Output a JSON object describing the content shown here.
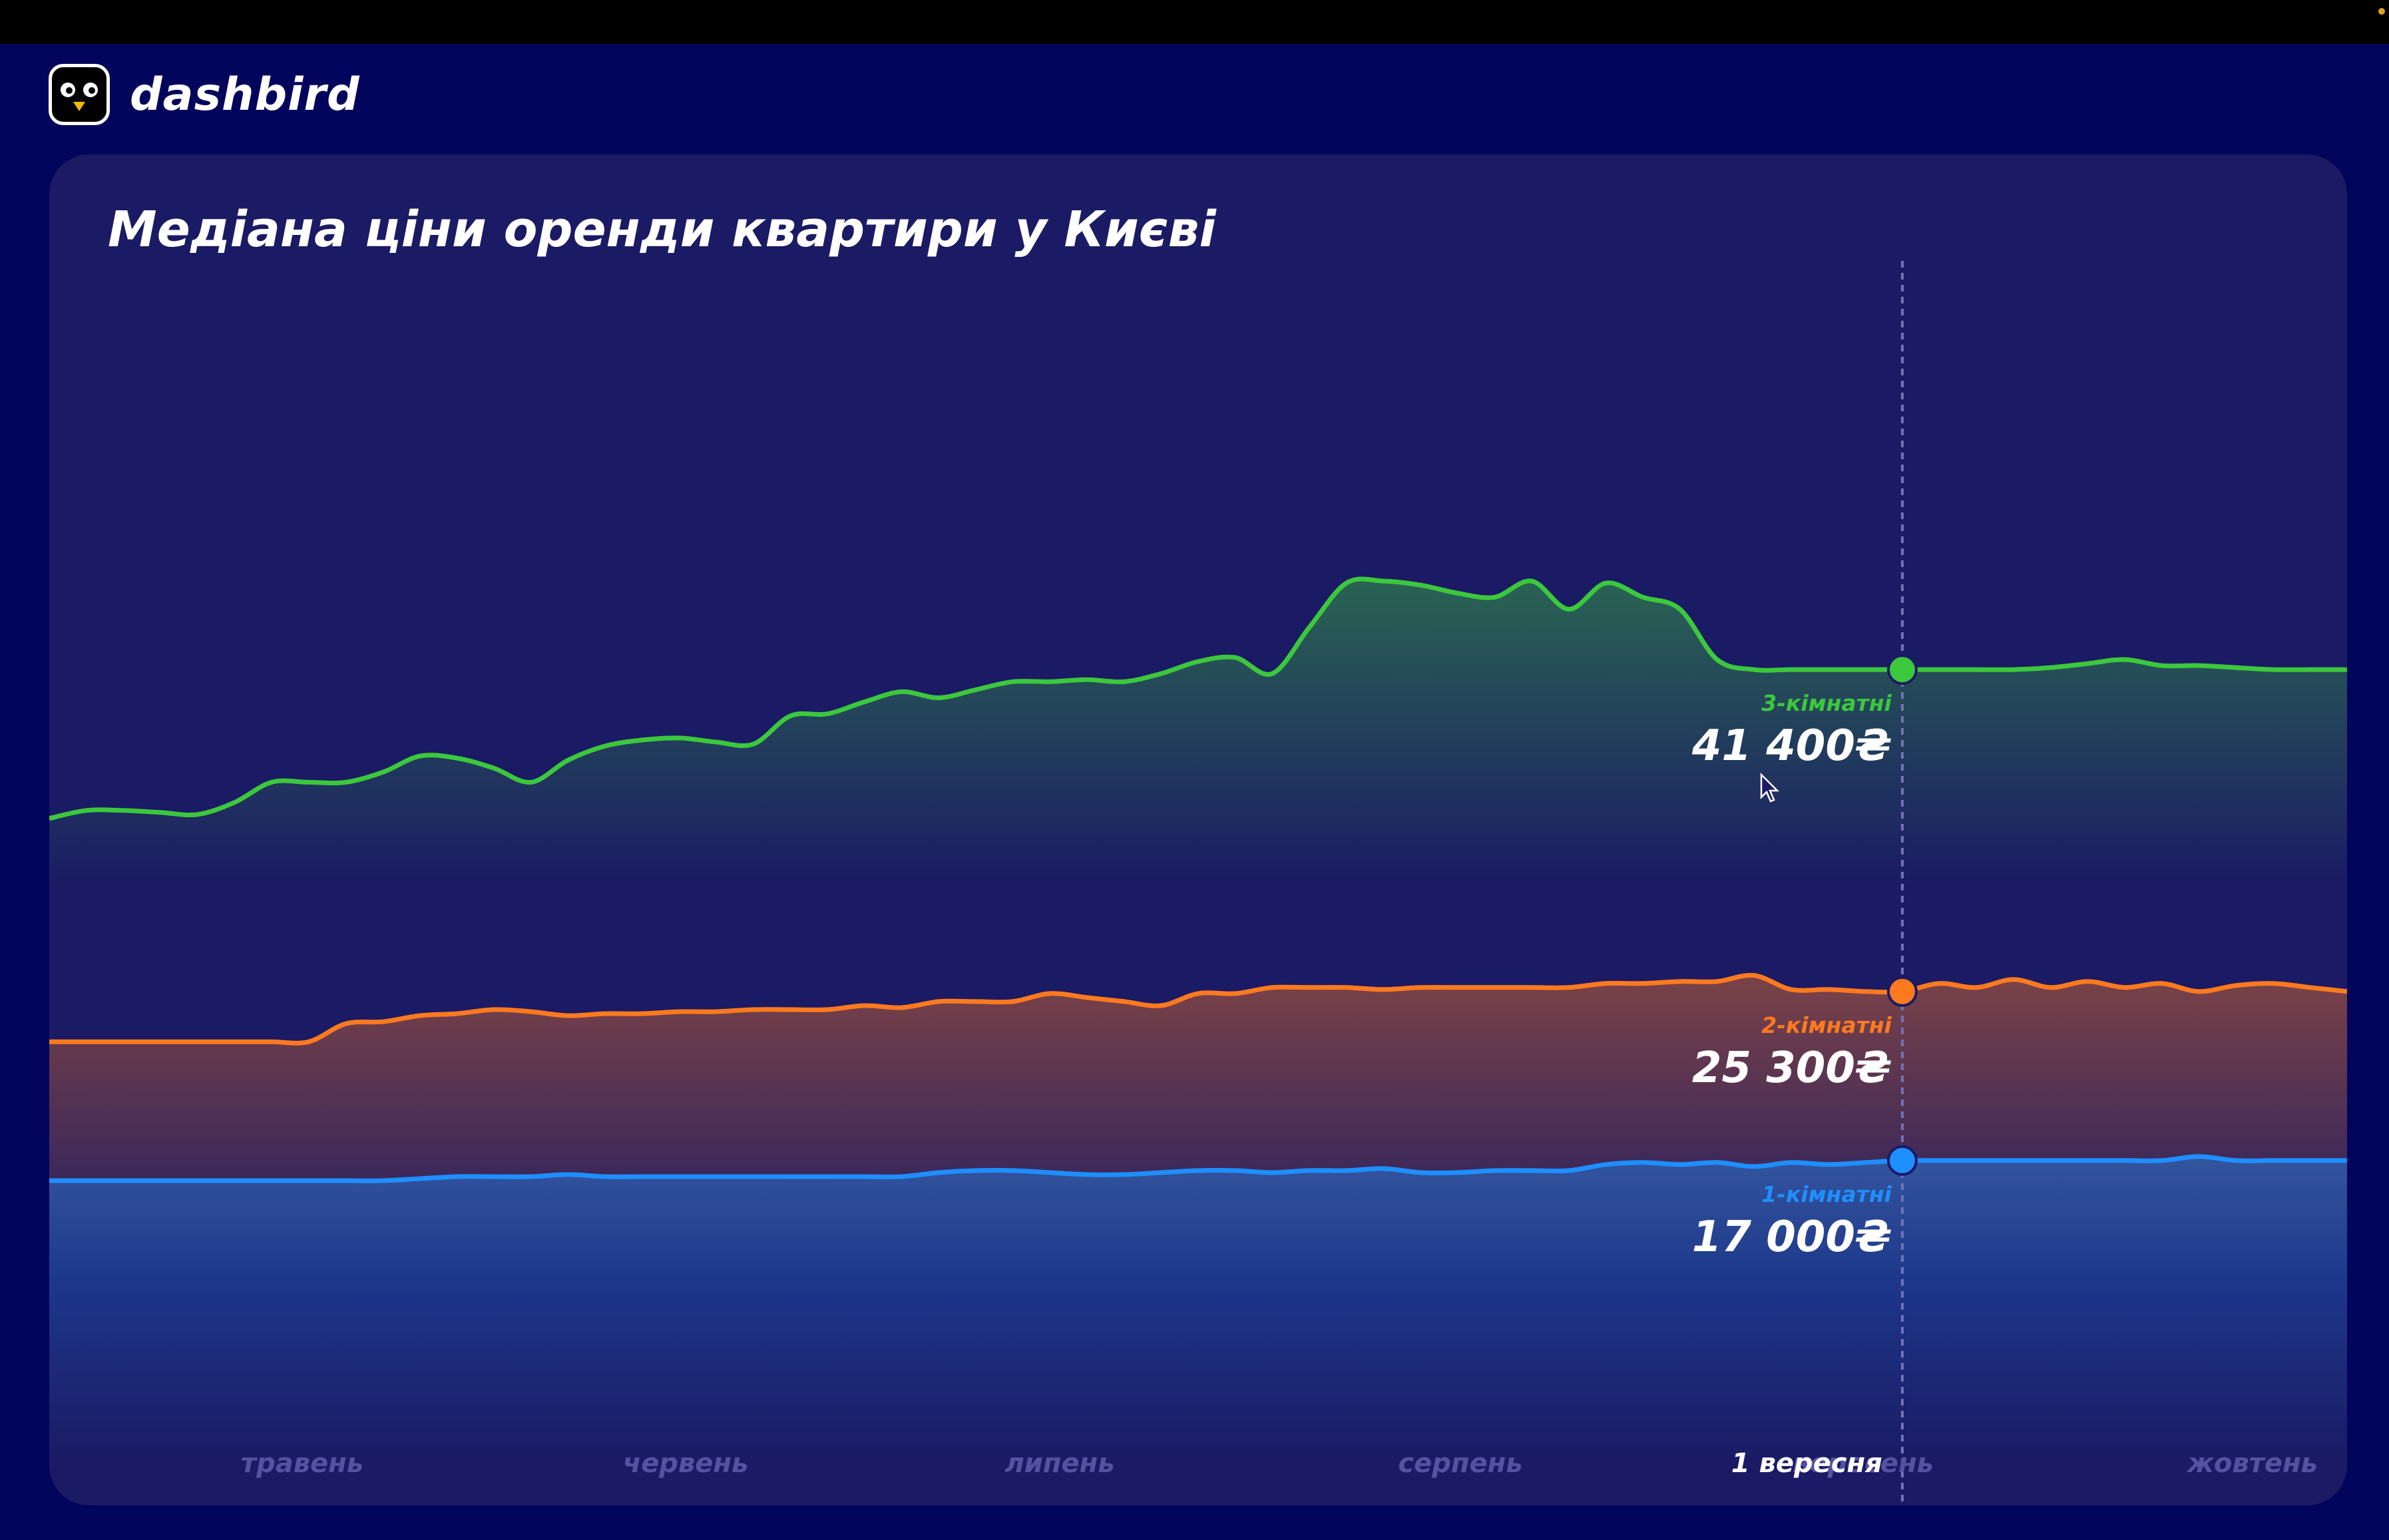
{
  "brand": {
    "name": "dashbird",
    "logo_icon": "bird-logo-icon"
  },
  "colors": {
    "background": "#03045c",
    "card": "#1b1a64",
    "green": "#3cc83c",
    "orange": "#ff7a1f",
    "blue": "#1e8fff"
  },
  "chart_data": {
    "type": "area",
    "title": "Медіана ціни оренди квартири у Києві",
    "x_labels": [
      "травень",
      "червень",
      "липень",
      "серпень",
      "вересень",
      "жовтень"
    ],
    "cursor": {
      "label": "1 вересня"
    },
    "series": [
      {
        "name": "3-кімнатні",
        "color": "#3cc83c",
        "cursor_value": "41 400₴",
        "values": [
          34000,
          34400,
          34400,
          34300,
          34200,
          34800,
          35800,
          35800,
          35800,
          36300,
          37100,
          37000,
          36500,
          35800,
          36900,
          37600,
          37900,
          38000,
          37800,
          37700,
          39100,
          39200,
          39800,
          40300,
          40000,
          40400,
          40800,
          40800,
          40900,
          40800,
          41200,
          41800,
          42000,
          41200,
          43500,
          45700,
          45800,
          45600,
          45200,
          45000,
          45800,
          44400,
          45700,
          45000,
          44400,
          41900,
          41400,
          41400,
          41400,
          41400,
          41400,
          41400,
          41400,
          41400,
          41500,
          41700,
          41900,
          41600,
          41600,
          41500,
          41400,
          41400,
          41400
        ]
      },
      {
        "name": "2-кімнатні",
        "color": "#ff7a1f",
        "cursor_value": "25 300₴",
        "values": [
          22900,
          22900,
          22900,
          22900,
          22900,
          22900,
          22900,
          22900,
          23800,
          23900,
          24200,
          24300,
          24500,
          24400,
          24200,
          24300,
          24300,
          24400,
          24400,
          24500,
          24500,
          24500,
          24700,
          24600,
          24900,
          24900,
          24900,
          25300,
          25100,
          24900,
          24700,
          25300,
          25300,
          25600,
          25600,
          25600,
          25500,
          25600,
          25600,
          25600,
          25600,
          25600,
          25800,
          25800,
          25900,
          25900,
          26200,
          25500,
          25500,
          25400,
          25400,
          25800,
          25600,
          26000,
          25600,
          25900,
          25600,
          25800,
          25400,
          25700,
          25800,
          25600,
          25400
        ]
      },
      {
        "name": "1-кімнатні",
        "color": "#1e8fff",
        "cursor_value": "17 000₴",
        "values": [
          16000,
          16000,
          16000,
          16000,
          16000,
          16000,
          16000,
          16000,
          16000,
          16000,
          16100,
          16200,
          16200,
          16200,
          16300,
          16200,
          16200,
          16200,
          16200,
          16200,
          16200,
          16200,
          16200,
          16200,
          16400,
          16500,
          16500,
          16400,
          16300,
          16300,
          16400,
          16500,
          16500,
          16400,
          16500,
          16500,
          16600,
          16400,
          16400,
          16500,
          16500,
          16500,
          16800,
          16900,
          16800,
          16900,
          16700,
          16900,
          16800,
          16900,
          17000,
          17000,
          17000,
          17000,
          17000,
          17000,
          17000,
          17000,
          17200,
          17000,
          17000,
          17000,
          17000
        ]
      }
    ]
  }
}
